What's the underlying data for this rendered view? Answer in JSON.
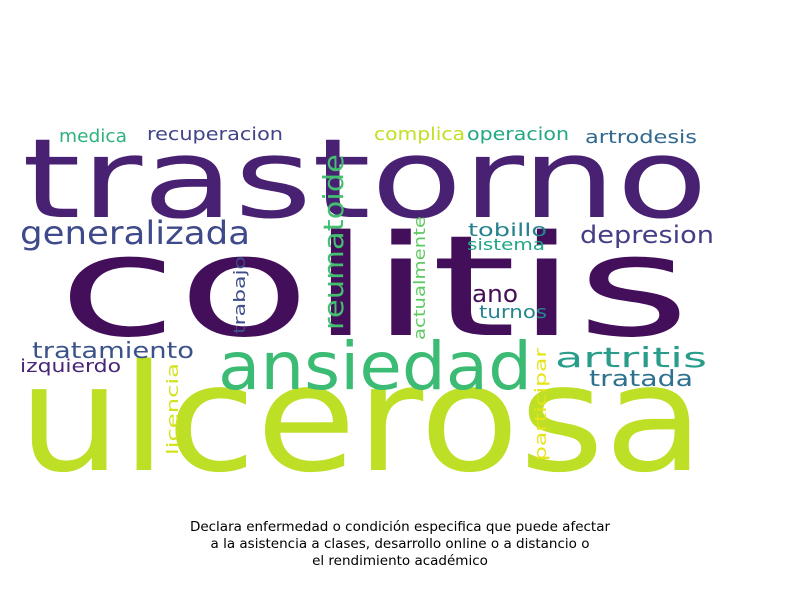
{
  "wordcloud": {
    "words": [
      {
        "text": "trastorno",
        "color": "#482173"
      },
      {
        "text": "colitis",
        "color": "#440f5a"
      },
      {
        "text": "ulcerosa",
        "color": "#bddf26"
      },
      {
        "text": "ansiedad",
        "color": "#3cbb75"
      },
      {
        "text": "generalizada",
        "color": "#3e4a89"
      },
      {
        "text": "reumatoide",
        "color": "#44bf70"
      },
      {
        "text": "depresion",
        "color": "#433e85"
      },
      {
        "text": "artritis",
        "color": "#2a9d8a"
      },
      {
        "text": "tratada",
        "color": "#2c728e"
      },
      {
        "text": "tratamiento",
        "color": "#3b528b"
      },
      {
        "text": "izquierdo",
        "color": "#482576"
      },
      {
        "text": "ano",
        "color": "#440d55"
      },
      {
        "text": "turnos",
        "color": "#25868e"
      },
      {
        "text": "tobillo",
        "color": "#26828e"
      },
      {
        "text": "sistema",
        "color": "#21a685"
      },
      {
        "text": "medica",
        "color": "#2eb37c"
      },
      {
        "text": "recuperacion",
        "color": "#414487"
      },
      {
        "text": "complica",
        "color": "#c2df23"
      },
      {
        "text": "operacion",
        "color": "#22a884"
      },
      {
        "text": "artrodesis",
        "color": "#31688e"
      },
      {
        "text": "trabajo",
        "color": "#3e4c8a"
      },
      {
        "text": "actualmente",
        "color": "#5ec962"
      },
      {
        "text": "licencia",
        "color": "#d2e21b"
      },
      {
        "text": "participar",
        "color": "#e5e419"
      }
    ]
  },
  "caption": {
    "line1": "Declara enfermedad o condición especifica que puede afectar",
    "line2": "a la asistencia a clases, desarrollo online o a distancio o",
    "line3": "el rendimiento académico"
  }
}
